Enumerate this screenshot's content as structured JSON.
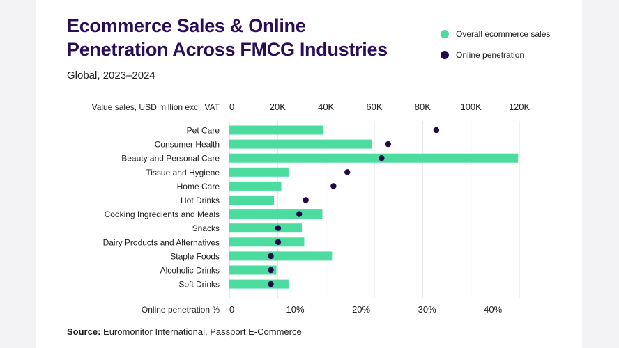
{
  "title_lines": [
    "Ecommerce Sales & Online",
    "Penetration Across FMCG Industries"
  ],
  "subtitle": "Global, 2023–2024",
  "legend": {
    "sales": {
      "label": "Overall ecommerce sales",
      "color": "#4ddc9f"
    },
    "penetration": {
      "label": "Online penetration",
      "color": "#23094a"
    }
  },
  "source": {
    "prefix": "Source:",
    "text": "Euromonitor International, Passport E-Commerce"
  },
  "chart_data": {
    "type": "bar",
    "title": "Ecommerce Sales & Online Penetration Across FMCG Industries",
    "subtitle": "Global, 2023–2024",
    "categories": [
      "Pet Care",
      "Consumer Health",
      "Beauty and Personal Care",
      "Tissue and Hygiene",
      "Home Care",
      "Hot Drinks",
      "Cooking Ingredients and Meals",
      "Snacks",
      "Dairy Products and Alternatives",
      "Staple Foods",
      "Alcoholic Drinks",
      "Soft Drinks"
    ],
    "top_axis": {
      "label": "Value sales, USD million excl. VAT",
      "ticks": [
        "0",
        "20K",
        "40K",
        "60K",
        "80K",
        "100K",
        "120K"
      ],
      "range": [
        0,
        120000
      ]
    },
    "bottom_axis": {
      "label": "Online penetration %",
      "ticks": [
        "0",
        "10%",
        "20%",
        "30%",
        "40%"
      ],
      "range": [
        0,
        44
      ]
    },
    "series": [
      {
        "name": "Overall ecommerce sales",
        "type": "bar",
        "axis": "top",
        "values": [
          39000,
          59000,
          119500,
          24500,
          21500,
          18500,
          38500,
          30000,
          31000,
          42500,
          19500,
          24500
        ]
      },
      {
        "name": "Online penetration",
        "type": "dot",
        "axis": "bottom",
        "values": [
          31.4,
          24.1,
          23.1,
          17.9,
          15.8,
          11.6,
          10.6,
          7.4,
          7.4,
          6.3,
          6.3,
          6.3
        ]
      }
    ],
    "grid": true,
    "legend_position": "top-right"
  }
}
